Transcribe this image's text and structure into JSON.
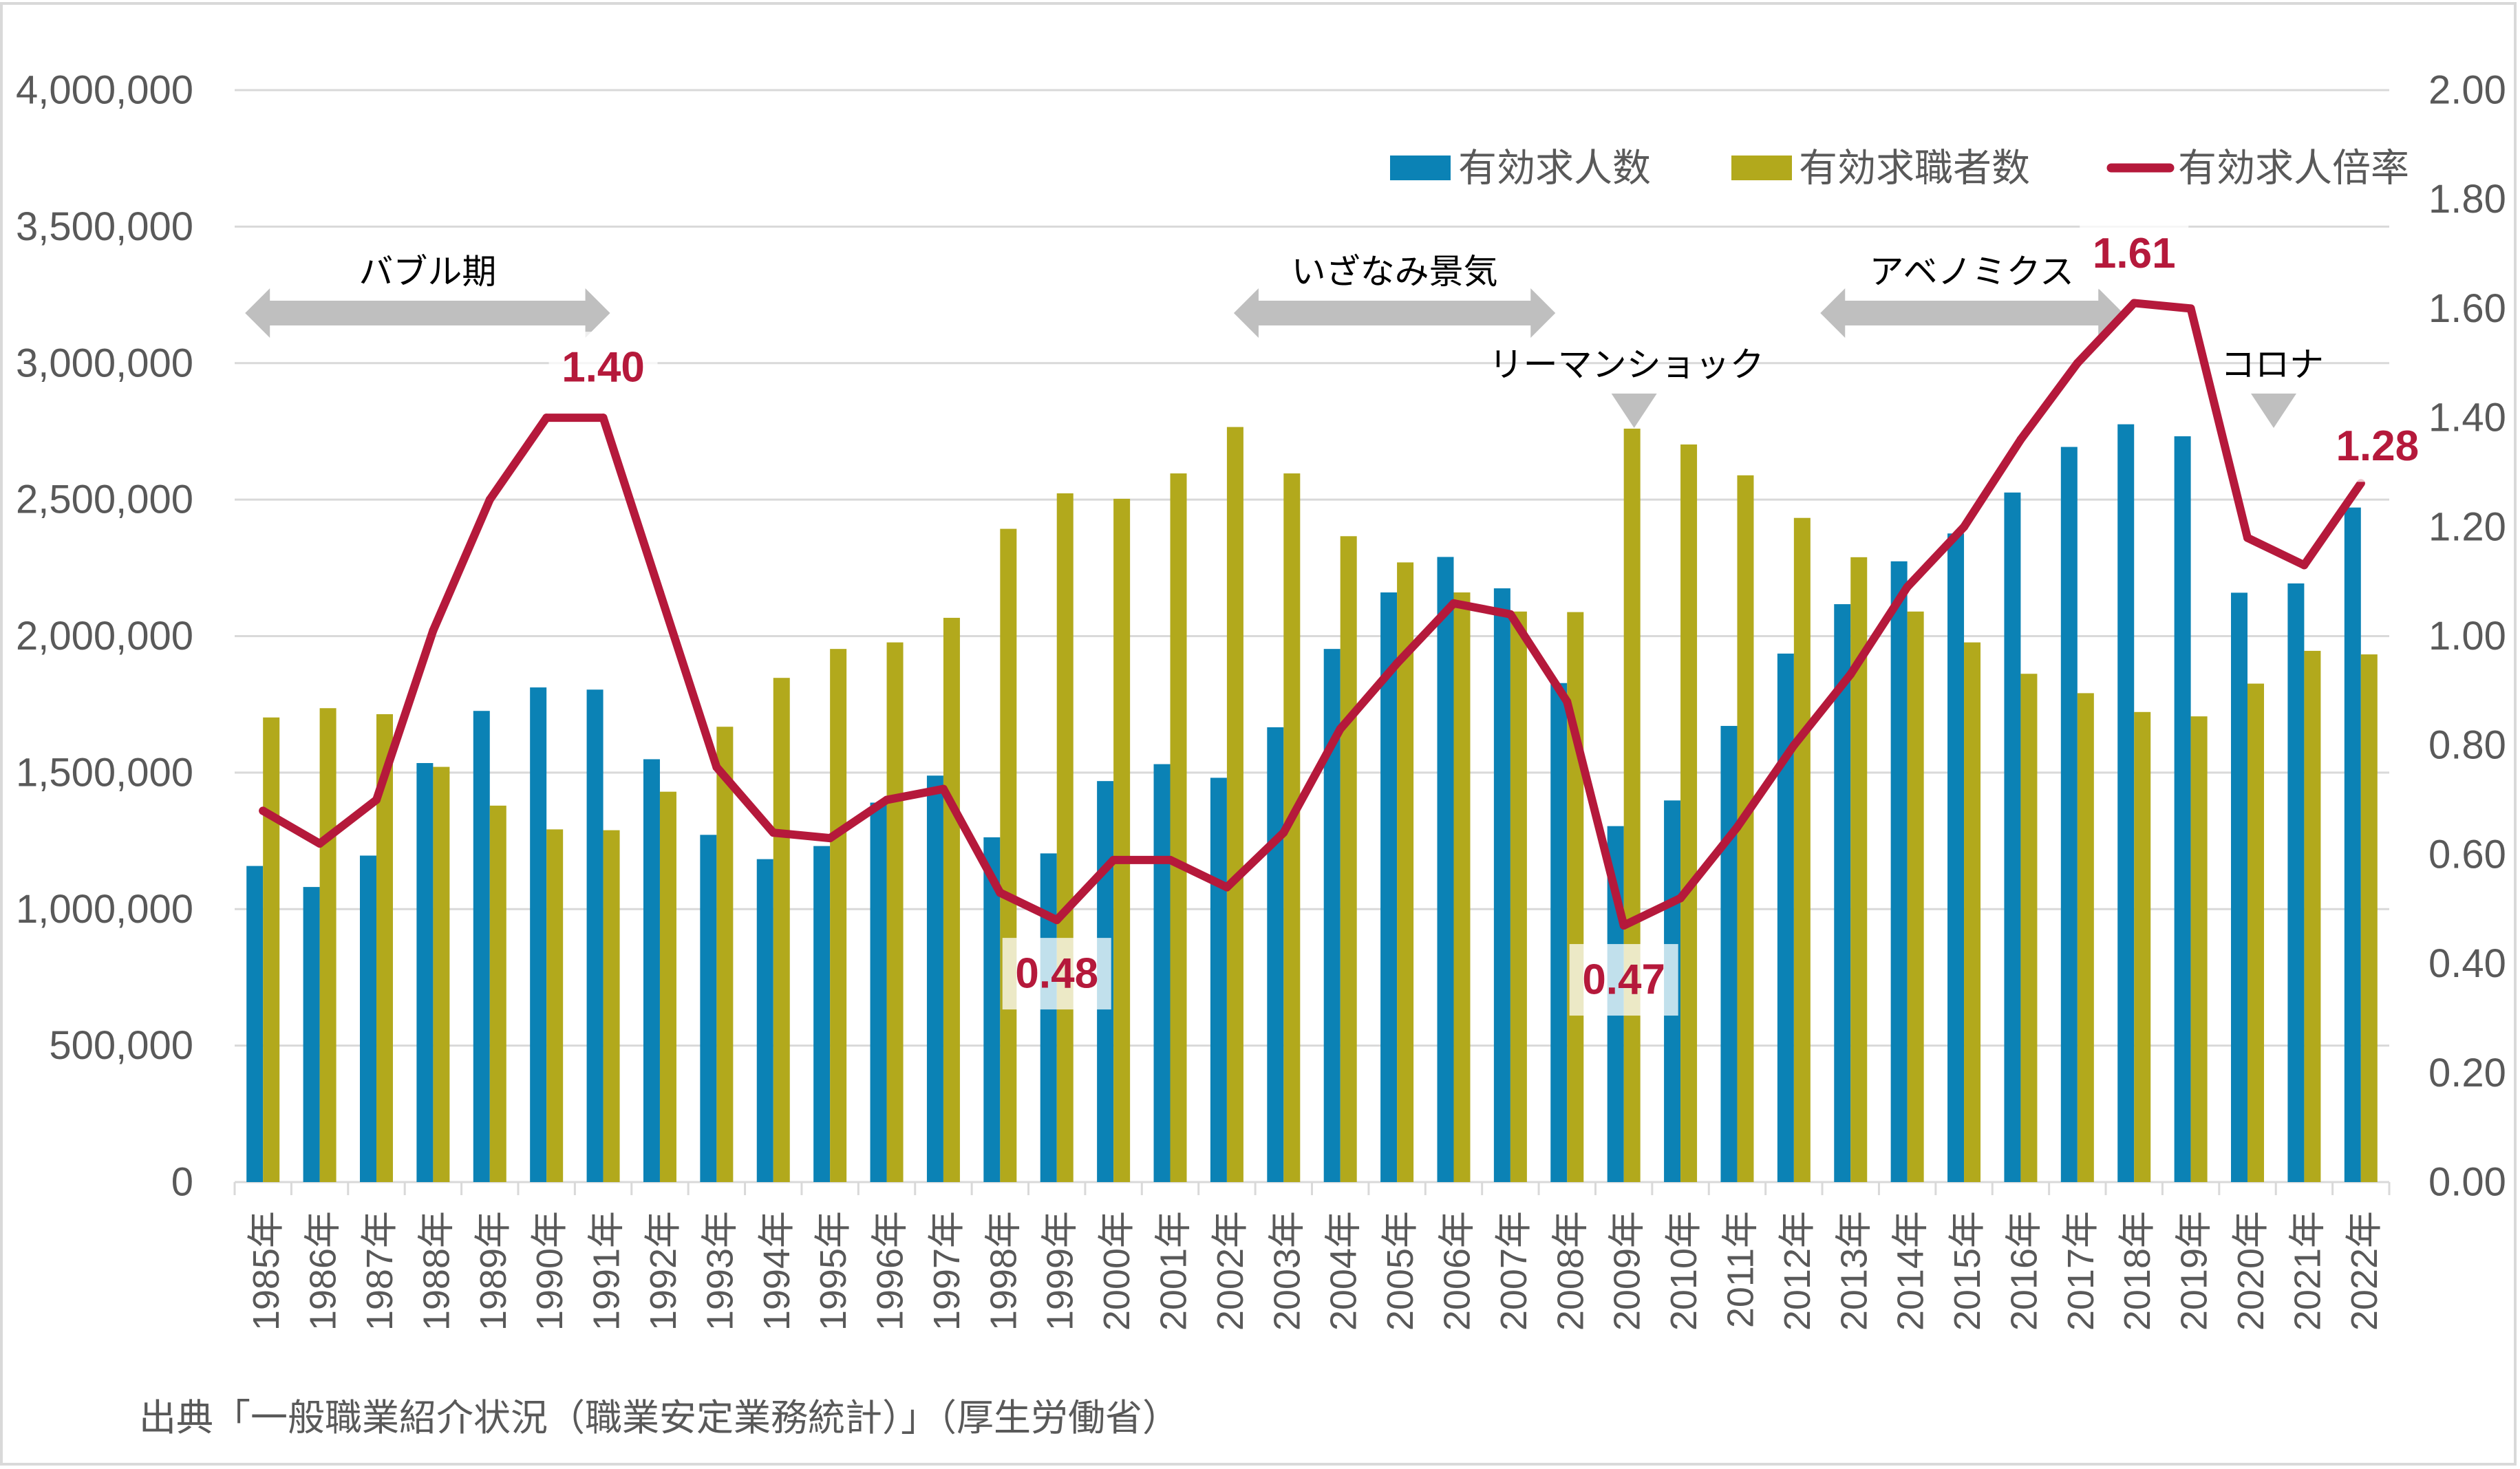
{
  "chart_data": {
    "type": "bar",
    "title": "",
    "xlabel": "",
    "ylabel": "",
    "y2label": "",
    "categories": [
      "1985年",
      "1986年",
      "1987年",
      "1988年",
      "1989年",
      "1990年",
      "1991年",
      "1992年",
      "1993年",
      "1994年",
      "1995年",
      "1996年",
      "1997年",
      "1998年",
      "1999年",
      "2000年",
      "2001年",
      "2002年",
      "2003年",
      "2004年",
      "2005年",
      "2006年",
      "2007年",
      "2008年",
      "2009年",
      "2010年",
      "2011年",
      "2012年",
      "2013年",
      "2014年",
      "2015年",
      "2016年",
      "2017年",
      "2018年",
      "2019年",
      "2020年",
      "2021年",
      "2022年"
    ],
    "series": [
      {
        "name": "有効求人数",
        "type": "bar",
        "axis": "left",
        "color": "#0B82B5",
        "values": [
          1158000,
          1081000,
          1196000,
          1535000,
          1726000,
          1812000,
          1804000,
          1549000,
          1272000,
          1183000,
          1231000,
          1390000,
          1489000,
          1263000,
          1204000,
          1469000,
          1531000,
          1481000,
          1666000,
          1953000,
          2160000,
          2290000,
          2175000,
          1828000,
          1304000,
          1398000,
          1671000,
          1936000,
          2117000,
          2274000,
          2376000,
          2526000,
          2693000,
          2776000,
          2732000,
          2159000,
          2193000,
          2471000
        ]
      },
      {
        "name": "有効求職者数",
        "type": "bar",
        "axis": "left",
        "color": "#B2A91C",
        "values": [
          1702000,
          1736000,
          1714000,
          1521000,
          1379000,
          1292000,
          1289000,
          1430000,
          1668000,
          1847000,
          1953000,
          1977000,
          2067000,
          2393000,
          2523000,
          2503000,
          2596000,
          2766000,
          2596000,
          2366000,
          2270000,
          2160000,
          2090000,
          2088000,
          2760000,
          2702000,
          2589000,
          2433000,
          2289000,
          2090000,
          1977000,
          1862000,
          1791000,
          1722000,
          1706000,
          1826000,
          1946000,
          1933000
        ]
      },
      {
        "name": "有効求人倍率",
        "type": "line",
        "axis": "right",
        "color": "#B5193B",
        "values": [
          0.68,
          0.62,
          0.7,
          1.01,
          1.25,
          1.4,
          1.4,
          1.08,
          0.76,
          0.64,
          0.63,
          0.7,
          0.72,
          0.53,
          0.48,
          0.59,
          0.59,
          0.54,
          0.64,
          0.83,
          0.95,
          1.06,
          1.04,
          0.88,
          0.47,
          0.52,
          0.65,
          0.8,
          0.93,
          1.09,
          1.2,
          1.36,
          1.5,
          1.61,
          1.6,
          1.18,
          1.13,
          1.28
        ]
      }
    ],
    "ylim": [
      0,
      4000000
    ],
    "y2lim": [
      0,
      2.0
    ],
    "yticks": [
      0,
      500000,
      1000000,
      1500000,
      2000000,
      2500000,
      3000000,
      3500000,
      4000000
    ],
    "ytick_labels": [
      "0",
      "500,000",
      "1,000,000",
      "1,500,000",
      "2,000,000",
      "2,500,000",
      "3,000,000",
      "3,500,000",
      "4,000,000"
    ],
    "y2ticks": [
      0,
      0.2,
      0.4,
      0.6,
      0.8,
      1.0,
      1.2,
      1.4,
      1.6,
      1.8,
      2.0
    ],
    "y2tick_labels": [
      "0.00",
      "0.20",
      "0.40",
      "0.60",
      "0.80",
      "1.00",
      "1.20",
      "1.40",
      "1.60",
      "1.80",
      "2.00"
    ],
    "grid": true,
    "legend": {
      "position": "top-right",
      "entries": [
        {
          "label": "有効求人数",
          "marker": "square"
        },
        {
          "label": "有効求職者数",
          "marker": "square"
        },
        {
          "label": "有効求人倍率",
          "marker": "line"
        }
      ]
    },
    "data_labels": [
      {
        "series": "有効求人倍率",
        "category": "1991年",
        "text": "1.40",
        "position": "above"
      },
      {
        "series": "有効求人倍率",
        "category": "1999年",
        "text": "0.48",
        "position": "below"
      },
      {
        "series": "有効求人倍率",
        "category": "2009年",
        "text": "0.47",
        "position": "below"
      },
      {
        "series": "有効求人倍率",
        "category": "2018年",
        "text": "1.61",
        "position": "above"
      },
      {
        "series": "有効求人倍率",
        "category": "2022年",
        "text": "1.28",
        "position": "above"
      }
    ],
    "annotations": [
      {
        "type": "span-arrow",
        "label": "バブル期",
        "from": "1985年",
        "to": "1991年"
      },
      {
        "type": "span-arrow",
        "label": "いざなみ景気",
        "from": "2002年",
        "to": "2008年"
      },
      {
        "type": "span-arrow",
        "label": "アベノミクス",
        "from": "2013年",
        "to": "2018年"
      },
      {
        "type": "event-marker",
        "label": "リーマンショック",
        "at": "2009年"
      },
      {
        "type": "event-marker",
        "label": "コロナ",
        "at": "2020年"
      }
    ],
    "annotation_color": "#BFBFBF",
    "gridline_color": "#D9D9D9",
    "source_note": "出典「一般職業紹介状況（職業安定業務統計）」（厚生労働省）"
  }
}
